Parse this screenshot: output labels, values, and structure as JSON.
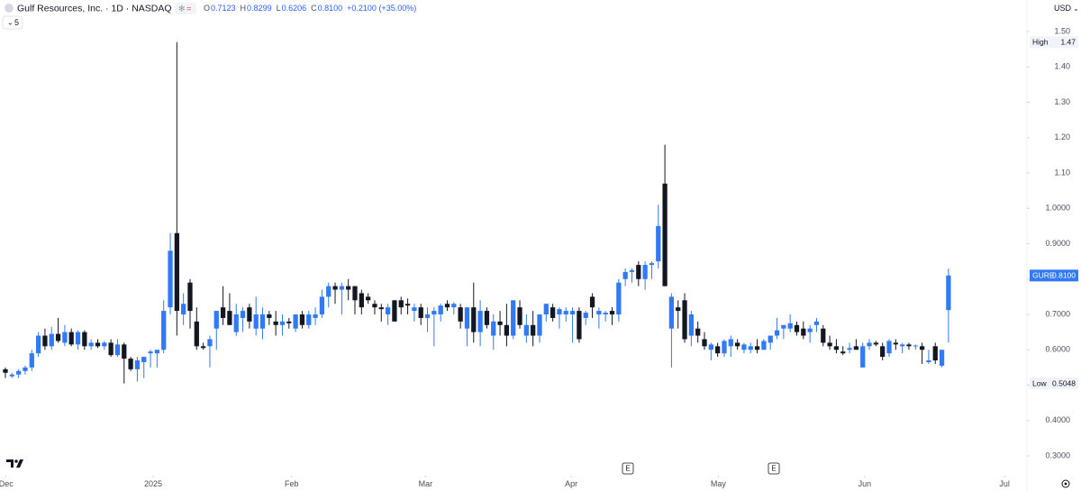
{
  "chart_data": {
    "type": "candlestick",
    "title": "Gulf Resources, Inc. · 1D · NASDAQ",
    "readout": [
      {
        "key": "O",
        "value": "0.7123"
      },
      {
        "key": "H",
        "value": "0.8299"
      },
      {
        "key": "L",
        "value": "0.6206"
      },
      {
        "key": "C",
        "value": "0.8100"
      }
    ],
    "change": "+0.2100 (+35.00%)",
    "interval_menu": "5",
    "currency": "USD",
    "up_color": "#3179f5",
    "down_color": "#131722",
    "open": [
      0.545,
      0.525,
      0.53,
      0.54,
      0.55,
      0.59,
      0.64,
      0.61,
      0.645,
      0.62,
      0.65,
      0.615,
      0.65,
      0.61,
      0.62,
      0.61,
      0.62,
      0.585,
      0.615,
      0.575,
      0.545,
      0.565,
      0.59,
      0.59,
      0.6,
      0.72,
      0.93,
      0.7,
      0.79,
      0.68,
      0.61,
      0.61,
      0.66,
      0.72,
      0.71,
      0.65,
      0.69,
      0.72,
      0.66,
      0.66,
      0.7,
      0.68,
      0.67,
      0.68,
      0.66,
      0.7,
      0.67,
      0.69,
      0.7,
      0.75,
      0.78,
      0.77,
      0.78,
      0.78,
      0.76,
      0.75,
      0.73,
      0.72,
      0.7,
      0.74,
      0.74,
      0.73,
      0.71,
      0.72,
      0.69,
      0.7,
      0.7,
      0.73,
      0.72,
      0.72,
      0.66,
      0.72,
      0.65,
      0.71,
      0.64,
      0.68,
      0.67,
      0.64,
      0.72,
      0.64,
      0.67,
      0.64,
      0.7,
      0.72,
      0.7,
      0.7,
      0.7,
      0.71,
      0.69,
      0.75,
      0.7,
      0.7,
      0.71,
      0.7,
      0.8,
      0.82,
      0.84,
      0.8,
      0.84,
      0.85,
      1.07,
      0.66,
      0.72,
      0.74,
      0.64,
      0.66,
      0.63,
      0.6,
      0.61,
      0.59,
      0.61,
      0.62,
      0.6,
      0.6,
      0.61,
      0.6,
      0.62,
      0.64,
      0.66,
      0.66,
      0.67,
      0.66,
      0.65,
      0.67,
      0.66,
      0.62,
      0.61,
      0.595,
      0.6,
      0.61,
      0.55,
      0.61,
      0.62,
      0.61,
      0.59,
      0.62,
      0.61,
      0.615,
      0.61,
      0.61,
      0.565,
      0.61,
      0.555,
      0.7123
    ],
    "high": [
      0.55,
      0.535,
      0.545,
      0.555,
      0.6,
      0.65,
      0.66,
      0.665,
      0.69,
      0.67,
      0.66,
      0.655,
      0.655,
      0.63,
      0.63,
      0.625,
      0.63,
      0.63,
      0.62,
      0.58,
      0.58,
      0.58,
      0.6,
      0.6,
      0.74,
      0.93,
      1.47,
      0.76,
      0.8,
      0.72,
      0.62,
      0.64,
      0.71,
      0.78,
      0.76,
      0.73,
      0.72,
      0.73,
      0.75,
      0.72,
      0.71,
      0.71,
      0.7,
      0.69,
      0.7,
      0.71,
      0.71,
      0.72,
      0.77,
      0.79,
      0.79,
      0.79,
      0.8,
      0.78,
      0.77,
      0.76,
      0.74,
      0.73,
      0.73,
      0.74,
      0.75,
      0.745,
      0.73,
      0.73,
      0.72,
      0.72,
      0.73,
      0.74,
      0.735,
      0.73,
      0.72,
      0.79,
      0.74,
      0.72,
      0.7,
      0.71,
      0.73,
      0.74,
      0.74,
      0.7,
      0.71,
      0.7,
      0.73,
      0.73,
      0.72,
      0.72,
      0.72,
      0.72,
      0.71,
      0.76,
      0.72,
      0.71,
      0.72,
      0.8,
      0.83,
      0.83,
      0.85,
      0.85,
      0.85,
      1.01,
      1.18,
      0.76,
      0.74,
      0.76,
      0.71,
      0.68,
      0.65,
      0.62,
      0.62,
      0.63,
      0.64,
      0.63,
      0.62,
      0.62,
      0.63,
      0.63,
      0.64,
      0.69,
      0.67,
      0.7,
      0.68,
      0.68,
      0.67,
      0.69,
      0.67,
      0.64,
      0.63,
      0.61,
      0.62,
      0.63,
      0.62,
      0.63,
      0.625,
      0.62,
      0.63,
      0.63,
      0.62,
      0.62,
      0.615,
      0.62,
      0.6,
      0.62,
      0.6,
      0.8299
    ],
    "low": [
      0.52,
      0.52,
      0.52,
      0.53,
      0.54,
      0.58,
      0.6,
      0.6,
      0.62,
      0.61,
      0.61,
      0.6,
      0.6,
      0.6,
      0.605,
      0.6,
      0.58,
      0.58,
      0.5048,
      0.54,
      0.51,
      0.52,
      0.55,
      0.55,
      0.59,
      0.7,
      0.64,
      0.67,
      0.66,
      0.6,
      0.6,
      0.55,
      0.6,
      0.67,
      0.67,
      0.64,
      0.65,
      0.66,
      0.64,
      0.63,
      0.67,
      0.64,
      0.64,
      0.66,
      0.65,
      0.66,
      0.66,
      0.67,
      0.69,
      0.72,
      0.73,
      0.7,
      0.74,
      0.7,
      0.7,
      0.73,
      0.7,
      0.68,
      0.67,
      0.68,
      0.7,
      0.7,
      0.68,
      0.67,
      0.65,
      0.61,
      0.68,
      0.71,
      0.7,
      0.66,
      0.61,
      0.62,
      0.61,
      0.66,
      0.6,
      0.64,
      0.61,
      0.63,
      0.66,
      0.62,
      0.61,
      0.62,
      0.68,
      0.68,
      0.66,
      0.68,
      0.62,
      0.62,
      0.67,
      0.69,
      0.66,
      0.68,
      0.67,
      0.68,
      0.78,
      0.79,
      0.78,
      0.77,
      0.8,
      0.83,
      0.78,
      0.55,
      0.66,
      0.62,
      0.61,
      0.62,
      0.6,
      0.57,
      0.58,
      0.58,
      0.58,
      0.6,
      0.59,
      0.59,
      0.59,
      0.6,
      0.6,
      0.63,
      0.63,
      0.65,
      0.64,
      0.63,
      0.62,
      0.65,
      0.61,
      0.6,
      0.59,
      0.585,
      0.59,
      0.6,
      0.55,
      0.6,
      0.61,
      0.57,
      0.58,
      0.6,
      0.59,
      0.6,
      0.6,
      0.56,
      0.56,
      0.56,
      0.55,
      0.6206
    ],
    "close": [
      0.535,
      0.53,
      0.54,
      0.55,
      0.59,
      0.64,
      0.61,
      0.645,
      0.625,
      0.65,
      0.615,
      0.65,
      0.61,
      0.62,
      0.61,
      0.62,
      0.585,
      0.615,
      0.575,
      0.545,
      0.57,
      0.58,
      0.595,
      0.6,
      0.71,
      0.88,
      0.71,
      0.73,
      0.71,
      0.61,
      0.605,
      0.63,
      0.71,
      0.69,
      0.67,
      0.7,
      0.71,
      0.68,
      0.7,
      0.7,
      0.69,
      0.67,
      0.68,
      0.675,
      0.7,
      0.67,
      0.7,
      0.7,
      0.75,
      0.78,
      0.77,
      0.78,
      0.77,
      0.74,
      0.72,
      0.74,
      0.72,
      0.715,
      0.72,
      0.68,
      0.72,
      0.725,
      0.72,
      0.69,
      0.7,
      0.71,
      0.725,
      0.72,
      0.73,
      0.68,
      0.72,
      0.65,
      0.71,
      0.67,
      0.68,
      0.67,
      0.64,
      0.74,
      0.67,
      0.67,
      0.64,
      0.7,
      0.73,
      0.69,
      0.715,
      0.71,
      0.71,
      0.63,
      0.705,
      0.72,
      0.71,
      0.705,
      0.7,
      0.79,
      0.82,
      0.825,
      0.8,
      0.84,
      0.845,
      0.95,
      0.78,
      0.75,
      0.71,
      0.63,
      0.7,
      0.64,
      0.61,
      0.615,
      0.59,
      0.625,
      0.63,
      0.61,
      0.615,
      0.61,
      0.6,
      0.625,
      0.64,
      0.655,
      0.67,
      0.675,
      0.65,
      0.64,
      0.66,
      0.68,
      0.62,
      0.61,
      0.6,
      0.59,
      0.605,
      0.6,
      0.61,
      0.62,
      0.615,
      0.58,
      0.625,
      0.615,
      0.615,
      0.61,
      0.612,
      0.6,
      0.57,
      0.57,
      0.6,
      0.81
    ],
    "xlim": [
      -0.82,
      154.9
    ],
    "xticks": [
      {
        "value": 0.1,
        "label": "Dec"
      },
      {
        "value": 22.4,
        "label": "2025"
      },
      {
        "value": 43.4,
        "label": "Feb"
      },
      {
        "value": 63.7,
        "label": "Mar"
      },
      {
        "value": 85.8,
        "label": "Apr"
      },
      {
        "value": 108.1,
        "label": "May"
      },
      {
        "value": 130.3,
        "label": "Jun"
      },
      {
        "value": 151.5,
        "label": "Jul"
      }
    ],
    "ylim": [
      0.2516,
      1.5892
    ],
    "yticks": [
      {
        "value": 1.5,
        "label": "1.50"
      },
      {
        "value": 1.4,
        "label": "1.40"
      },
      {
        "value": 1.3,
        "label": "1.30"
      },
      {
        "value": 1.2,
        "label": "1.20"
      },
      {
        "value": 1.1,
        "label": "1.10"
      },
      {
        "value": 1.0,
        "label": "1.0000"
      },
      {
        "value": 0.9,
        "label": "0.9000"
      },
      {
        "value": 0.8,
        "label": "0.8000"
      },
      {
        "value": 0.7,
        "label": "0.7000"
      },
      {
        "value": 0.6,
        "label": "0.6000"
      },
      {
        "value": 0.5,
        "label": "0.5000"
      },
      {
        "value": 0.4,
        "label": "0.4000"
      },
      {
        "value": 0.3,
        "label": "0.3000"
      }
    ],
    "high_marker": {
      "label": "High",
      "value": 1.47
    },
    "low_marker": {
      "label": "Low",
      "value": 0.5048
    },
    "last_price": {
      "symbol": "GURE",
      "value": 0.81,
      "value_label": "0.8100"
    },
    "events": [
      "E",
      "E"
    ]
  }
}
